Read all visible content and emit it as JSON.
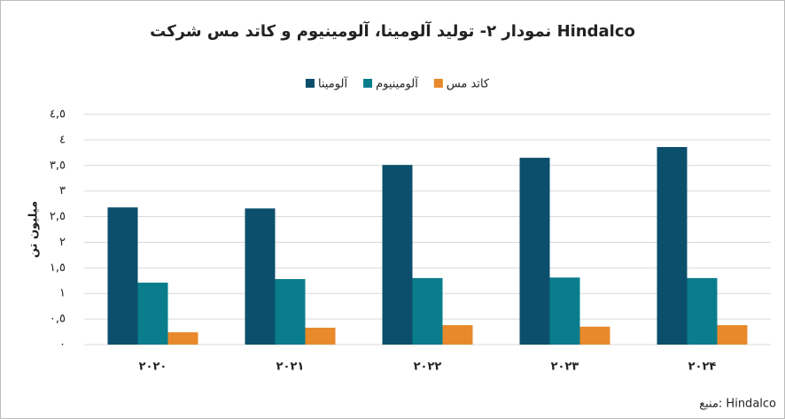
{
  "chart_data": {
    "type": "bar",
    "title": "نمودار ۲- تولید آلومینا، آلومینیوم و کاتد مس شرکت Hindalco",
    "y_label": "میلیون تن",
    "source": "منبع: Hindalco",
    "categories": [
      "۲۰۲۰",
      "۲۰۲۱",
      "۲۰۲۲",
      "۲۰۲۳",
      "۲۰۲۴"
    ],
    "series": [
      {
        "name": "آلومینا",
        "color": "#0b4f6c",
        "values": [
          2.68,
          2.66,
          3.51,
          3.65,
          3.86
        ]
      },
      {
        "name": "آلومینیوم",
        "color": "#0a7d8c",
        "values": [
          1.21,
          1.28,
          1.3,
          1.31,
          1.3
        ]
      },
      {
        "name": "کاتد مس",
        "color": "#e8892b",
        "values": [
          0.24,
          0.33,
          0.38,
          0.35,
          0.38
        ]
      }
    ],
    "ylim": [
      0,
      4.5
    ],
    "yticks": [
      {
        "value": 0,
        "label": "٠"
      },
      {
        "value": 0.5,
        "label": "٠,٥"
      },
      {
        "value": 1,
        "label": "١"
      },
      {
        "value": 1.5,
        "label": "١,٥"
      },
      {
        "value": 2,
        "label": "٢"
      },
      {
        "value": 2.5,
        "label": "٢,٥"
      },
      {
        "value": 3,
        "label": "٣"
      },
      {
        "value": 3.5,
        "label": "٣,٥"
      },
      {
        "value": 4,
        "label": "٤"
      },
      {
        "value": 4.5,
        "label": "٤,٥"
      }
    ],
    "grid": true
  }
}
